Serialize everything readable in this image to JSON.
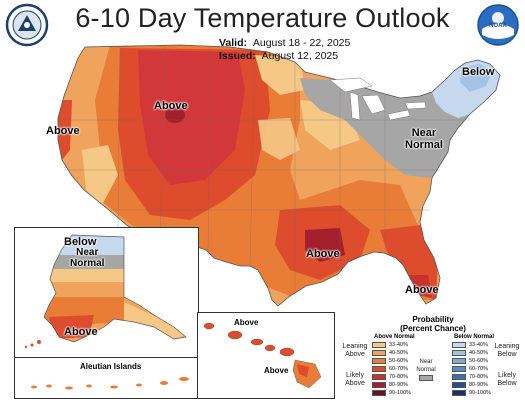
{
  "title": "6-10 Day Temperature Outlook",
  "valid_label": "Valid:",
  "valid_dates": "August 18 - 22, 2025",
  "issued_label": "Issued:",
  "issued_date": "August 12, 2025",
  "regions": {
    "above_west_coast": "Above",
    "above_northern_rockies": "Above",
    "below_new_england": "Below",
    "near_normal_northeast": "Near\nNormal",
    "above_gulf": "Above",
    "above_florida": "Above",
    "alaska_below": "Below",
    "alaska_near_normal": "Near\nNormal",
    "alaska_above": "Above",
    "hawaii_above_1": "Above",
    "hawaii_above_2": "Above"
  },
  "aleutian_label": "Aleutian Islands",
  "legend": {
    "title": "Probability\n(Percent Chance)",
    "above_header": "Above Normal",
    "below_header": "Below Normal",
    "near_normal": "Near\nNormal",
    "leaning_above": "Leaning\nAbove",
    "likely_above": "Likely\nAbove",
    "leaning_below": "Leaning\nBelow",
    "likely_below": "Likely\nBelow",
    "bins": [
      "33-40%",
      "40-50%",
      "50-60%",
      "60-70%",
      "70-80%",
      "80-90%",
      "90-100%"
    ],
    "above_colors": [
      "#f5c885",
      "#efa35c",
      "#e97d37",
      "#dc4c2d",
      "#c9312f",
      "#a41f2c",
      "#6b1221"
    ],
    "below_colors": [
      "#c6d8ee",
      "#a3c2e4",
      "#7fa9d6",
      "#5a8cc6",
      "#3c6fb3",
      "#294e94",
      "#1a2f6b"
    ],
    "near_color": "#a6a6a6"
  },
  "icons": [
    "noaa-logo",
    "dept-commerce-seal"
  ]
}
